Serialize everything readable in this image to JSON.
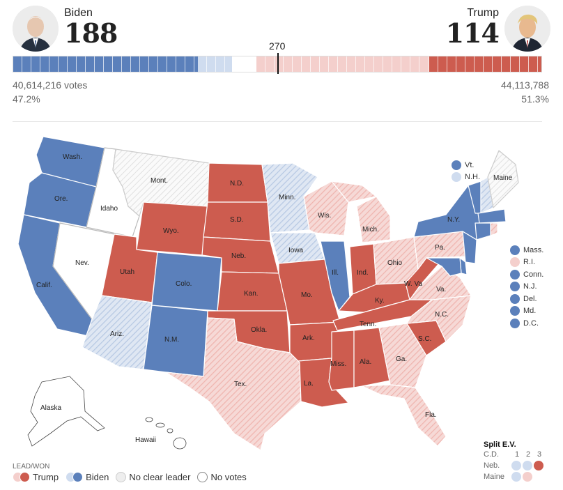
{
  "colors": {
    "biden_won": "#5b80bb",
    "biden_lead": "#cfdcef",
    "trump_won": "#cd5c4f",
    "trump_lead": "#f4cfcc",
    "no_votes": "#ffffff"
  },
  "header": {
    "left": {
      "name": "Biden",
      "electoral_votes": "188",
      "votes": "40,614,216 votes",
      "pct": "47.2%"
    },
    "right": {
      "name": "Trump",
      "electoral_votes": "114",
      "votes": "44,113,788",
      "pct": "51.3%"
    },
    "threshold": "270"
  },
  "bar": {
    "biden_won": 188,
    "biden_lead": 35,
    "no_leader": 0,
    "no_votes": 25,
    "trump_lead": 176,
    "trump_won": 114
  },
  "states": {
    "wa": "Wash.",
    "or": "Ore.",
    "ca": "Calif.",
    "id": "Idaho",
    "nv": "Nev.",
    "mt": "Mont.",
    "wy": "Wyo.",
    "ut": "Utah",
    "az": "Ariz.",
    "co": "Colo.",
    "nm": "N.M.",
    "nd": "N.D.",
    "sd": "S.D.",
    "ne": "Neb.",
    "ks": "Kan.",
    "ok": "Okla.",
    "tx": "Tex.",
    "mn": "Minn.",
    "ia": "Iowa",
    "mo": "Mo.",
    "ar": "Ark.",
    "la": "La.",
    "wi": "Wis.",
    "il": "Ill.",
    "mi": "Mich.",
    "in": "Ind.",
    "oh": "Ohio",
    "ky": "Ky.",
    "tn": "Tenn.",
    "ms": "Miss.",
    "al": "Ala.",
    "ga": "Ga.",
    "fl": "Fla.",
    "sc": "S.C.",
    "nc": "N.C.",
    "va": "Va.",
    "wv": "W. Va",
    "pa": "Pa.",
    "ny": "N.Y.",
    "me": "Maine",
    "ak": "Alaska",
    "hi": "Hawaii"
  },
  "small_states": [
    {
      "name": "Vt.",
      "status": "biden_won"
    },
    {
      "name": "N.H.",
      "status": "biden_lead"
    }
  ],
  "side_states": [
    {
      "name": "Mass.",
      "status": "biden_won"
    },
    {
      "name": "R.I.",
      "status": "trump_lead"
    },
    {
      "name": "Conn.",
      "status": "biden_won"
    },
    {
      "name": "N.J.",
      "status": "biden_won"
    },
    {
      "name": "Del.",
      "status": "biden_won"
    },
    {
      "name": "Md.",
      "status": "biden_won"
    },
    {
      "name": "D.C.",
      "status": "biden_won"
    }
  ],
  "legend": {
    "title": "LEAD/WON",
    "trump": "Trump",
    "biden": "Biden",
    "no_leader": "No clear leader",
    "no_votes": "No votes"
  },
  "split": {
    "title": "Split E.V.",
    "header": "C.D.",
    "cd1": "1",
    "cd2": "2",
    "cd3": "3",
    "ne_label": "Neb.",
    "me_label": "Maine"
  }
}
